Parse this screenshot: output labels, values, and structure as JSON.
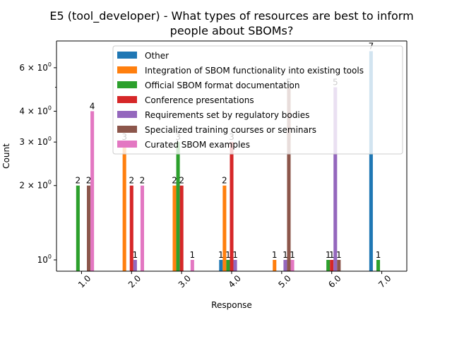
{
  "chart_data": {
    "type": "bar",
    "title_line1": "E5 (tool_developer) - What types of resources are best to inform",
    "title_line2": "people about SBOMs?",
    "xlabel": "Response",
    "ylabel": "Count",
    "yscale": "log",
    "ylim": [
      0.9,
      7.7
    ],
    "categories": [
      "1.0",
      "2.0",
      "3.0",
      "4.0",
      "5.0",
      "6.0",
      "7.0"
    ],
    "y_ticks": [
      {
        "value": 1,
        "base": "10",
        "exp": "0"
      },
      {
        "value": 2,
        "base": "2 × 10",
        "exp": "0"
      },
      {
        "value": 3,
        "base": "3 × 10",
        "exp": "0"
      },
      {
        "value": 4,
        "base": "4 × 10",
        "exp": "0"
      },
      {
        "value": 6,
        "base": "6 × 10",
        "exp": "0"
      }
    ],
    "legend_position": "upper right",
    "series": [
      {
        "name": "Other",
        "color": "#1f77b4",
        "values": [
          0,
          0,
          0,
          1,
          0,
          0,
          7
        ]
      },
      {
        "name": "Integration of SBOM functionality into existing tools",
        "color": "#ff7f0e",
        "values": [
          0,
          3,
          2,
          2,
          1,
          0,
          0
        ]
      },
      {
        "name": "Official SBOM format documentation",
        "color": "#2ca02c",
        "values": [
          2,
          0,
          3,
          1,
          0,
          1,
          1
        ]
      },
      {
        "name": "Conference presentations",
        "color": "#d62728",
        "values": [
          0,
          2,
          2,
          3,
          0,
          1,
          0
        ]
      },
      {
        "name": "Requirements set by regulatory bodies",
        "color": "#9467bd",
        "values": [
          0,
          1,
          0,
          1,
          1,
          5,
          0
        ]
      },
      {
        "name": "Specialized training courses or seminars",
        "color": "#8c564b",
        "values": [
          2,
          0,
          0,
          0,
          5,
          1,
          0
        ]
      },
      {
        "name": "Curated SBOM examples",
        "color": "#e377c2",
        "values": [
          4,
          2,
          1,
          0,
          1,
          0,
          0
        ]
      }
    ]
  }
}
